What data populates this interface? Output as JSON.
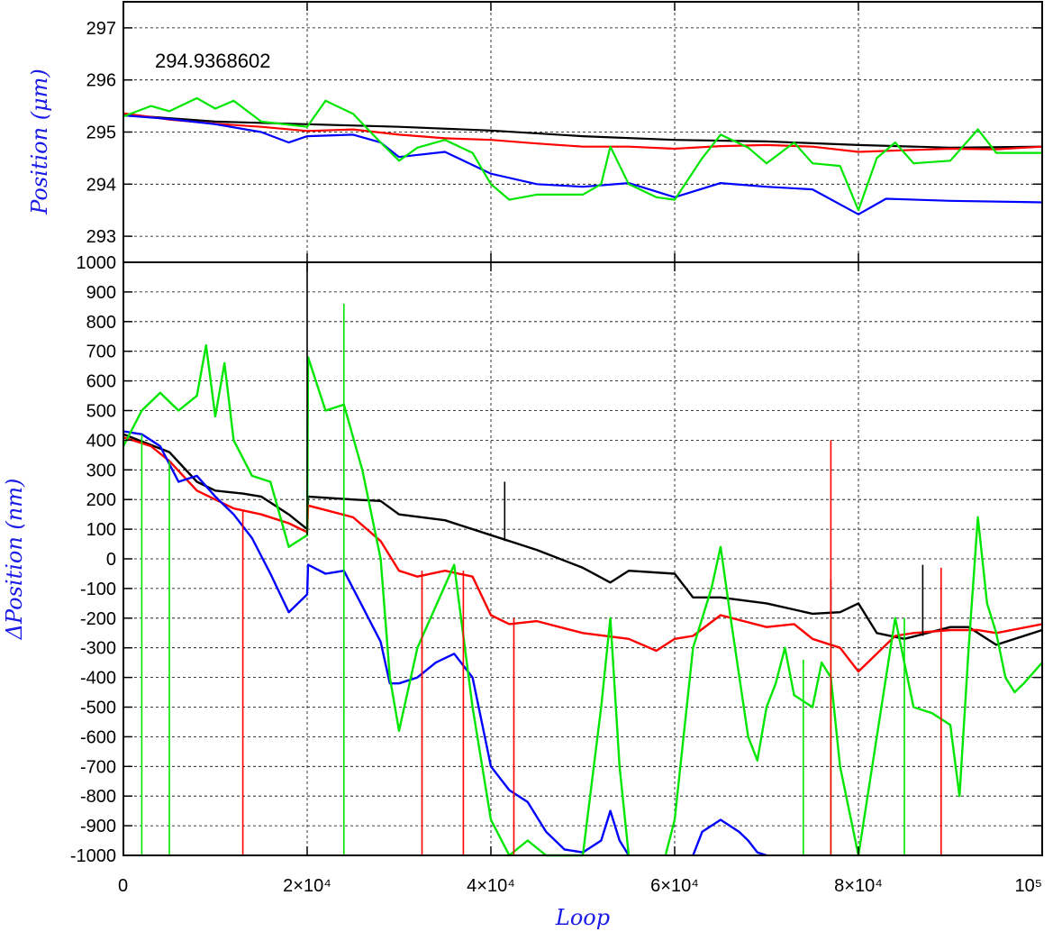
{
  "chart_data": [
    {
      "id": "top",
      "type": "line",
      "ylabel": "Position (μm)",
      "annotation": "294.9368602",
      "xlim": [
        0,
        100000
      ],
      "ylim": [
        292.5,
        297.5
      ],
      "yticks": [
        293,
        294,
        295,
        296,
        297
      ],
      "ytick_labels": [
        "293",
        "294",
        "295",
        "296",
        "297"
      ],
      "grid": true,
      "series": [
        {
          "color": "#000000",
          "x": [
            0,
            10000,
            20000,
            30000,
            40000,
            50000,
            60000,
            70000,
            80000,
            90000,
            100000
          ],
          "y": [
            295.33,
            295.2,
            295.15,
            295.1,
            295.03,
            294.92,
            294.85,
            294.82,
            294.75,
            294.7,
            294.72
          ]
        },
        {
          "color": "#ff0000",
          "x": [
            0,
            5000,
            10000,
            15000,
            20000,
            25000,
            30000,
            35000,
            40000,
            45000,
            50000,
            55000,
            60000,
            65000,
            70000,
            75000,
            80000,
            85000,
            90000,
            95000,
            100000
          ],
          "y": [
            295.36,
            295.24,
            295.16,
            295.1,
            295.02,
            295.05,
            294.95,
            294.88,
            294.85,
            294.78,
            294.72,
            294.72,
            294.68,
            294.73,
            294.75,
            294.72,
            294.62,
            294.65,
            294.68,
            294.67,
            294.72
          ]
        },
        {
          "color": "#0000ff",
          "x": [
            0,
            5000,
            10000,
            15000,
            18000,
            20000,
            25000,
            28000,
            30000,
            35000,
            40000,
            45000,
            50000,
            55000,
            60000,
            65000,
            70000,
            75000,
            80000,
            83000,
            90000,
            100000
          ],
          "y": [
            295.32,
            295.25,
            295.15,
            295.0,
            294.8,
            294.92,
            294.95,
            294.8,
            294.52,
            294.62,
            294.2,
            294.0,
            293.95,
            294.02,
            293.75,
            294.02,
            293.95,
            293.9,
            293.42,
            293.72,
            293.68,
            293.65
          ]
        },
        {
          "color": "#00e600",
          "x": [
            0,
            3000,
            5000,
            8000,
            10000,
            12000,
            15000,
            20000,
            22000,
            25000,
            28000,
            30000,
            32000,
            35000,
            38000,
            40000,
            42000,
            45000,
            50000,
            52000,
            53000,
            55000,
            58000,
            60000,
            63000,
            65000,
            68000,
            70000,
            73000,
            75000,
            78000,
            80000,
            82000,
            84000,
            86000,
            90000,
            93000,
            95000,
            100000
          ],
          "y": [
            295.3,
            295.5,
            295.4,
            295.65,
            295.45,
            295.6,
            295.2,
            295.1,
            295.6,
            295.35,
            294.8,
            294.45,
            294.7,
            294.85,
            294.6,
            294.0,
            293.7,
            293.8,
            293.8,
            294.0,
            294.72,
            294.0,
            293.75,
            293.7,
            294.5,
            294.95,
            294.7,
            294.4,
            294.8,
            294.4,
            294.35,
            293.5,
            294.5,
            294.8,
            294.4,
            294.45,
            295.05,
            294.6,
            294.6
          ]
        }
      ]
    },
    {
      "id": "bottom",
      "type": "line",
      "xlabel": "Loop",
      "ylabel": "ΔPosition (nm)",
      "xlim": [
        0,
        100000
      ],
      "ylim": [
        -1000,
        1000
      ],
      "xticks": [
        0,
        20000,
        40000,
        60000,
        80000,
        100000
      ],
      "xtick_labels": [
        "0",
        "2×10⁴",
        "4×10⁴",
        "6×10⁴",
        "8×10⁴",
        "10⁵"
      ],
      "yticks": [
        -1000,
        -900,
        -800,
        -700,
        -600,
        -500,
        -400,
        -300,
        -200,
        -100,
        0,
        100,
        200,
        300,
        400,
        500,
        600,
        700,
        800,
        900,
        1000
      ],
      "ytick_labels": [
        "-1000",
        "-900",
        "-800",
        "-700",
        "-600",
        "-500",
        "-400",
        "-300",
        "-200",
        "-100",
        "0",
        "100",
        "200",
        "300",
        "400",
        "500",
        "600",
        "700",
        "800",
        "900",
        "1000"
      ],
      "grid": true,
      "series": [
        {
          "color": "#000000",
          "x": [
            0,
            5000,
            8000,
            10000,
            13000,
            15000,
            18000,
            20000,
            20100,
            25000,
            28000,
            30000,
            35000,
            40000,
            45000,
            50000,
            53000,
            55000,
            60000,
            62000,
            65000,
            70000,
            75000,
            78000,
            80000,
            82000,
            85000,
            90000,
            92000,
            95000,
            100000
          ],
          "y": [
            420,
            360,
            260,
            230,
            220,
            210,
            150,
            100,
            210,
            200,
            195,
            150,
            130,
            80,
            30,
            -30,
            -80,
            -40,
            -50,
            -130,
            -130,
            -150,
            -185,
            -180,
            -150,
            -250,
            -270,
            -230,
            -230,
            -290,
            -240
          ]
        },
        {
          "color": "#ff0000",
          "x": [
            0,
            3000,
            5000,
            8000,
            10000,
            12000,
            15000,
            18000,
            20000,
            20100,
            25000,
            28000,
            30000,
            32000,
            35000,
            38000,
            40000,
            42000,
            45000,
            50000,
            55000,
            58000,
            60000,
            62000,
            65000,
            70000,
            73000,
            75000,
            78000,
            80000,
            82000,
            84000,
            86000,
            90000,
            93000,
            95000,
            100000
          ],
          "y": [
            410,
            380,
            330,
            230,
            200,
            170,
            150,
            120,
            90,
            180,
            140,
            60,
            -40,
            -60,
            -40,
            -60,
            -190,
            -220,
            -210,
            -250,
            -270,
            -310,
            -270,
            -260,
            -190,
            -230,
            -220,
            -270,
            -300,
            -380,
            -320,
            -260,
            -250,
            -240,
            -240,
            -250,
            -220
          ]
        },
        {
          "color": "#0000ff",
          "x": [
            0,
            2000,
            4000,
            6000,
            8000,
            10000,
            12000,
            14000,
            16000,
            18000,
            20000,
            20100,
            22000,
            24000,
            26000,
            28000,
            29000,
            30000,
            32000,
            34000,
            36000,
            38000,
            40000,
            42000,
            44000,
            46000,
            48000,
            50000,
            52000,
            53000,
            54000,
            55000
          ],
          "y": [
            430,
            420,
            380,
            260,
            280,
            210,
            150,
            70,
            -50,
            -180,
            -120,
            -20,
            -50,
            -40,
            -160,
            -280,
            -420,
            -420,
            -400,
            -350,
            -320,
            -400,
            -700,
            -780,
            -820,
            -920,
            -980,
            -990,
            -950,
            -850,
            -950,
            -1000
          ]
        },
        {
          "color": "#0000ff",
          "x": [
            62000,
            63000,
            64000,
            65000,
            66000,
            67000,
            68000,
            69000,
            70000
          ],
          "y": [
            -1000,
            -920,
            -900,
            -880,
            -900,
            -920,
            -950,
            -990,
            -1000
          ]
        },
        {
          "color": "#00e600",
          "x": [
            0,
            2000,
            4000,
            6000,
            8000,
            9000,
            10000,
            11000,
            12000,
            14000,
            16000,
            18000,
            20000,
            20100,
            22000,
            24000,
            26000,
            28000,
            29000,
            30000,
            32000,
            34000,
            36000,
            38000,
            40000,
            42000,
            44000,
            46000,
            48000,
            50000,
            52000,
            53000,
            54000,
            55000
          ],
          "y": [
            380,
            500,
            560,
            500,
            550,
            720,
            480,
            660,
            400,
            280,
            260,
            40,
            80,
            680,
            500,
            520,
            300,
            0,
            -400,
            -580,
            -300,
            -160,
            -20,
            -500,
            -880,
            -1000,
            -950,
            -1000,
            -1000,
            -1000,
            -500,
            -200,
            -700,
            -1000
          ]
        },
        {
          "color": "#00e600",
          "x": [
            59000,
            60000,
            62000,
            64000,
            65000,
            66000,
            68000,
            69000,
            70000,
            71000,
            72000,
            73000,
            74000,
            75000,
            76000,
            77000,
            78000,
            80000,
            81000,
            82000,
            84000,
            86000,
            88000,
            90000,
            91000,
            92000,
            93000,
            94000,
            95000,
            96000,
            97000,
            98000,
            100000
          ],
          "y": [
            -1000,
            -880,
            -300,
            -100,
            40,
            -180,
            -600,
            -680,
            -500,
            -420,
            -300,
            -460,
            -480,
            -500,
            -350,
            -400,
            -700,
            -1000,
            -800,
            -600,
            -200,
            -500,
            -520,
            -560,
            -800,
            -300,
            140,
            -150,
            -250,
            -400,
            -450,
            -420,
            -350
          ]
        }
      ],
      "spikes": [
        {
          "color": "#000000",
          "x": 20000,
          "y0": 80,
          "y1": 1000
        },
        {
          "color": "#000000",
          "x": 41500,
          "y0": 60,
          "y1": 260
        },
        {
          "color": "#000000",
          "x": 77000,
          "y0": -300,
          "y1": -70
        },
        {
          "color": "#000000",
          "x": 87000,
          "y0": -260,
          "y1": -20
        },
        {
          "color": "#00e600",
          "x": 2000,
          "y0": -1000,
          "y1": 420
        },
        {
          "color": "#00e600",
          "x": 5000,
          "y0": -1000,
          "y1": 330
        },
        {
          "color": "#00e600",
          "x": 24000,
          "y0": -1000,
          "y1": 860
        },
        {
          "color": "#00e600",
          "x": 74000,
          "y0": -1000,
          "y1": -340
        },
        {
          "color": "#00e600",
          "x": 77000,
          "y0": -1000,
          "y1": -200
        },
        {
          "color": "#00e600",
          "x": 85000,
          "y0": -1000,
          "y1": -200
        },
        {
          "color": "#ff0000",
          "x": 13000,
          "y0": -1000,
          "y1": 160
        },
        {
          "color": "#ff0000",
          "x": 32500,
          "y0": -1000,
          "y1": -40
        },
        {
          "color": "#ff0000",
          "x": 37000,
          "y0": -1000,
          "y1": -40
        },
        {
          "color": "#ff0000",
          "x": 42500,
          "y0": -1000,
          "y1": -200
        },
        {
          "color": "#ff0000",
          "x": 77000,
          "y0": -1000,
          "y1": 400
        },
        {
          "color": "#ff0000",
          "x": 89000,
          "y0": -1000,
          "y1": -30
        }
      ]
    }
  ]
}
